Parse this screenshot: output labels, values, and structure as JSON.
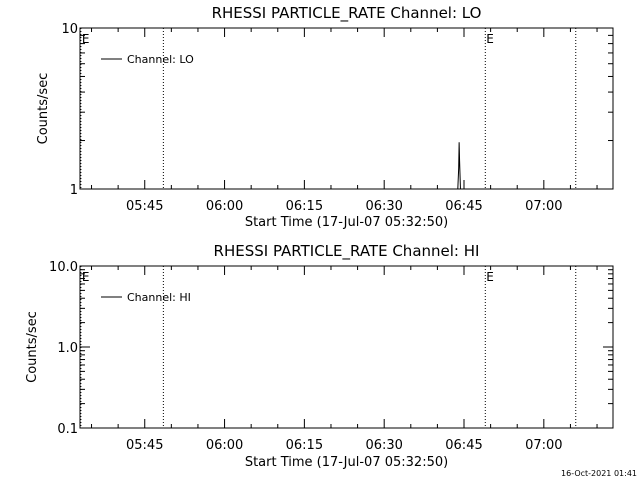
{
  "chart_data": [
    {
      "type": "line",
      "title": "RHESSI PARTICLE_RATE Channel: LO",
      "xlabel": "Start Time (17-Jul-07 05:32:50)",
      "ylabel": "Counts/sec",
      "yscale": "log",
      "ylim": [
        1,
        10
      ],
      "xlim": [
        "05:32:50",
        "07:13:00"
      ],
      "x_ticks": [
        "05:45",
        "06:00",
        "06:15",
        "06:30",
        "06:45",
        "07:00"
      ],
      "y_ticks": [
        "1",
        "10"
      ],
      "legend": {
        "label": "Channel: LO",
        "position": "top-left"
      },
      "markers": [
        {
          "time": "05:33:00",
          "label": "E"
        },
        {
          "time": "05:48:30",
          "label": ""
        },
        {
          "time": "06:49:00",
          "label": "E"
        },
        {
          "time": "07:06:00",
          "label": ""
        }
      ],
      "series": [
        {
          "name": "Channel: LO",
          "points": [
            {
              "time": "06:43:50",
              "value": 1.0
            },
            {
              "time": "06:44:00",
              "value": 1.35
            },
            {
              "time": "06:44:05",
              "value": 1.95
            },
            {
              "time": "06:44:10",
              "value": 1.5
            },
            {
              "time": "06:44:20",
              "value": 1.0
            }
          ]
        }
      ]
    },
    {
      "type": "line",
      "title": "RHESSI PARTICLE_RATE Channel: HI",
      "xlabel": "Start Time (17-Jul-07 05:32:50)",
      "ylabel": "Counts/sec",
      "yscale": "log",
      "ylim": [
        0.1,
        10
      ],
      "xlim": [
        "05:32:50",
        "07:13:00"
      ],
      "x_ticks": [
        "05:45",
        "06:00",
        "06:15",
        "06:30",
        "06:45",
        "07:00"
      ],
      "y_ticks": [
        "0.1",
        "1.0",
        "10.0"
      ],
      "legend": {
        "label": "Channel: HI",
        "position": "top-left"
      },
      "markers": [
        {
          "time": "05:33:00",
          "label": "E"
        },
        {
          "time": "05:48:30",
          "label": ""
        },
        {
          "time": "06:49:00",
          "label": "E"
        },
        {
          "time": "07:06:00",
          "label": ""
        }
      ],
      "series": [
        {
          "name": "Channel: HI",
          "points": []
        }
      ]
    }
  ],
  "footer": {
    "timestamp": "16-Oct-2021 01:41"
  }
}
